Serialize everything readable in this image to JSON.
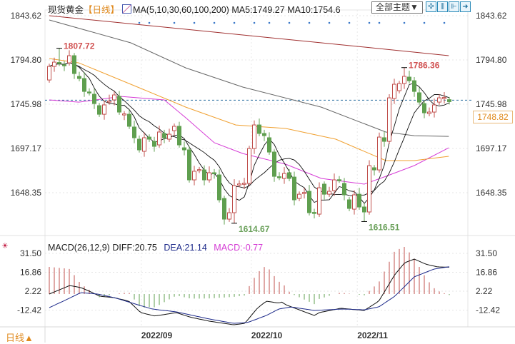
{
  "header": {
    "instrument": "现货黄金",
    "period": "【日线】",
    "ma_label": "MA(5,10,30,60,100,200)",
    "ma5": "MA5:1749.27",
    "ma10": "MA10:1754.6",
    "theme_button": "全部主题▼",
    "tools": [
      "crosshair-icon",
      "zoom-in-icon",
      "zoom-out-icon",
      "export-icon"
    ]
  },
  "macd_header": {
    "label": "MACD(26,12,9)",
    "diff": "DIFF:20.75",
    "dea": "DEA:21.14",
    "macd": "MACD:-0.77"
  },
  "footer": {
    "period": "日线▲"
  },
  "current_price": "1748.82",
  "colors": {
    "up": "#c0504d",
    "down": "#5f9f4f",
    "ma5": "#111111",
    "ma10": "#111111",
    "ma30": "#d63cd6",
    "ma60": "#f0a030",
    "ma100": "#666666",
    "ma200": "#a03030",
    "price_line": "#2a6fa0",
    "period": "#e08a1e"
  },
  "chart_data": [
    {
      "type": "candlestick",
      "title": "现货黄金 日线",
      "y_ticks": [
        "1843.62",
        "1794.80",
        "1745.98",
        "1697.17",
        "1648.35"
      ],
      "ylim": [
        1620,
        1843.62
      ],
      "x_ticks": [
        {
          "label": "2022/09",
          "index": 18.4
        },
        {
          "label": "2022/10",
          "index": 40.4
        },
        {
          "label": "2022/11",
          "index": 61.6
        }
      ],
      "ohlc": [
        [
          1772.7,
          1787.7
        ],
        [
          1787.7,
          1792.4
        ],
        [
          1792,
          1791
        ],
        [
          1789.5,
          1788.5
        ],
        [
          1791.6,
          1799.5
        ],
        [
          1799.5,
          1779.8
        ],
        [
          1776.7,
          1774.3
        ],
        [
          1774.3,
          1760.1
        ],
        [
          1759.5,
          1758.6
        ],
        [
          1757,
          1746.7
        ],
        [
          1744.4,
          1734.9
        ],
        [
          1734.9,
          1745.2
        ],
        [
          1748.5,
          1749.5
        ],
        [
          1750.7,
          1756.2
        ],
        [
          1754.6,
          1737.3
        ],
        [
          1734.5,
          1735.3
        ],
        [
          1734.9,
          1721.6
        ],
        [
          1720.8,
          1709
        ],
        [
          1707.4,
          1695.6
        ],
        [
          1694,
          1709
        ],
        [
          1709.7,
          1707.4
        ],
        [
          1705,
          1699.5
        ],
        [
          1701.1,
          1715.3
        ],
        [
          1713.7,
          1709
        ],
        [
          1707.4,
          1712.9
        ],
        [
          1716.8,
          1721.6
        ],
        [
          1721.6,
          1701.1
        ],
        [
          1697.9,
          1695.6
        ],
        [
          1695.6,
          1662.5
        ],
        [
          1662.5,
          1672
        ],
        [
          1673,
          1673.8
        ],
        [
          1673.5,
          1662.5
        ],
        [
          1662.5,
          1670.4
        ],
        [
          1670.4,
          1669.8
        ],
        [
          1668,
          1640.5
        ],
        [
          1642,
          1619.2
        ],
        [
          1619.2,
          1626.3
        ],
        [
          1626.3,
          1656.2
        ],
        [
          1657.5,
          1658
        ],
        [
          1658.3,
          1658.8
        ],
        [
          1658.6,
          1697.1
        ],
        [
          1697.1,
          1723.1
        ],
        [
          1723.1,
          1713.7
        ],
        [
          1713.7,
          1711.3
        ],
        [
          1709,
          1693.2
        ],
        [
          1693.2,
          1666.4
        ],
        [
          1666,
          1665.2
        ],
        [
          1664.1,
          1669.6
        ],
        [
          1670.4,
          1664.1
        ],
        [
          1665.6,
          1640.5
        ],
        [
          1642,
          1646.7
        ],
        [
          1648,
          1648.6
        ],
        [
          1649.9,
          1626.3
        ],
        [
          1626.6,
          1626
        ],
        [
          1624.7,
          1653.8
        ],
        [
          1657.8,
          1646.7
        ],
        [
          1646.7,
          1649.9
        ],
        [
          1650.7,
          1662.5
        ],
        [
          1662.7,
          1662.2
        ],
        [
          1658.6,
          1646
        ],
        [
          1640.5,
          1631
        ],
        [
          1630.2,
          1646
        ],
        [
          1646.7,
          1632.6
        ],
        [
          1632.6,
          1627.1
        ],
        [
          1627.1,
          1678.2
        ],
        [
          1675.9,
          1673.5
        ],
        [
          1673.5,
          1709.7
        ],
        [
          1709,
          1705
        ],
        [
          1705,
          1753
        ],
        [
          1752.3,
          1768
        ],
        [
          1760.9,
          1768.8
        ],
        [
          1768.8,
          1776.7
        ],
        [
          1775.9,
          1771.9
        ],
        [
          1771.9,
          1760.1
        ],
        [
          1758.6,
          1748.3
        ],
        [
          1746.7,
          1736.5
        ],
        [
          1735.7,
          1737.3
        ],
        [
          1737.3,
          1745.2
        ],
        [
          1748.3,
          1753
        ],
        [
          1752.8,
          1753.4
        ],
        [
          1751,
          1748.82
        ]
      ],
      "annotations": [
        {
          "label": "1807.72",
          "index": 2,
          "value": 1807.72,
          "kind": "high"
        },
        {
          "label": "1614.67",
          "index": 37,
          "value": 1614.67,
          "kind": "low"
        },
        {
          "label": "1616.51",
          "index": 63,
          "value": 1616.51,
          "kind": "low"
        },
        {
          "label": "1786.36",
          "index": 71,
          "value": 1786.36,
          "kind": "high"
        }
      ],
      "ma_series": [
        {
          "name": "MA30",
          "points": [
            [
              0,
              1750.7
            ],
            [
              5.9,
              1748.3
            ],
            [
              14.4,
              1754.6
            ],
            [
              23,
              1750.7
            ],
            [
              27.3,
              1731
            ],
            [
              33,
              1703.5
            ],
            [
              38.7,
              1691.6
            ],
            [
              47.3,
              1679.8
            ],
            [
              54.4,
              1664.1
            ],
            [
              63,
              1657.8
            ],
            [
              67.3,
              1666.4
            ],
            [
              73,
              1678.3
            ],
            [
              79.9,
              1697.9
            ]
          ]
        },
        {
          "name": "MA60",
          "points": [
            [
              0,
              1796.4
            ],
            [
              5.9,
              1791.6
            ],
            [
              18.7,
              1762.5
            ],
            [
              27.3,
              1742.8
            ],
            [
              37.3,
              1723.1
            ],
            [
              47.3,
              1719.2
            ],
            [
              57.3,
              1707.4
            ],
            [
              67.3,
              1683.8
            ],
            [
              73,
              1683.8
            ],
            [
              79.9,
              1688.5
            ]
          ]
        },
        {
          "name": "MA100",
          "points": [
            [
              0,
              1838.9
            ],
            [
              16.3,
              1813.7
            ],
            [
              27.3,
              1786.1
            ],
            [
              38.7,
              1764.9
            ],
            [
              54.4,
              1742.8
            ],
            [
              67.3,
              1715.3
            ],
            [
              73,
              1711.3
            ],
            [
              79.9,
              1710.5
            ]
          ]
        },
        {
          "name": "MA200",
          "points": [
            [
              0,
              1843.6
            ],
            [
              33,
              1825.5
            ],
            [
              61.6,
              1809.8
            ],
            [
              79.9,
              1799.5
            ]
          ]
        }
      ]
    },
    {
      "type": "line+bar",
      "title": "MACD(26,12,9)",
      "y_ticks": [
        "31.50",
        "16.86",
        "2.22",
        "-12.42"
      ],
      "ylim": [
        -25,
        31.5
      ],
      "diff": [
        [
          0,
          0
        ],
        [
          4.1,
          6.6
        ],
        [
          6.3,
          5
        ],
        [
          8.3,
          1.7
        ],
        [
          10.1,
          -1.7
        ],
        [
          13,
          -2.8
        ],
        [
          15.9,
          -5.5
        ],
        [
          18.3,
          -14.4
        ],
        [
          21.1,
          -17
        ],
        [
          25.4,
          -14.4
        ],
        [
          28.3,
          -18
        ],
        [
          32,
          -21
        ],
        [
          36.9,
          -23.8
        ],
        [
          39.1,
          -22.7
        ],
        [
          41.6,
          -11
        ],
        [
          43.4,
          -5.5
        ],
        [
          45.9,
          -7
        ],
        [
          46.4,
          -6
        ],
        [
          47.3,
          -8.3
        ],
        [
          53,
          -16.6
        ],
        [
          54,
          -14.4
        ],
        [
          58.3,
          -11
        ],
        [
          63,
          -12.7
        ],
        [
          65.9,
          -5.5
        ],
        [
          69.1,
          15
        ],
        [
          71.1,
          24.3
        ],
        [
          73,
          27
        ],
        [
          75.4,
          23
        ],
        [
          77.7,
          21
        ],
        [
          80,
          20.75
        ]
      ],
      "dea": [
        [
          0,
          -10.5
        ],
        [
          3.4,
          -4.4
        ],
        [
          6.3,
          1.1
        ],
        [
          9.7,
          0
        ],
        [
          13,
          -2.8
        ],
        [
          17.7,
          -8.3
        ],
        [
          20.6,
          -11.6
        ],
        [
          25.4,
          -13.8
        ],
        [
          32,
          -19.3
        ],
        [
          36.9,
          -22.7
        ],
        [
          39.7,
          -22
        ],
        [
          43.4,
          -16.6
        ],
        [
          45.9,
          -11.6
        ],
        [
          48.3,
          -10
        ],
        [
          53,
          -12.7
        ],
        [
          58.7,
          -11.6
        ],
        [
          63,
          -12.2
        ],
        [
          65.9,
          -10
        ],
        [
          69.1,
          -1.7
        ],
        [
          73,
          13.3
        ],
        [
          76.9,
          19.3
        ],
        [
          80,
          21.14
        ]
      ]
    }
  ]
}
